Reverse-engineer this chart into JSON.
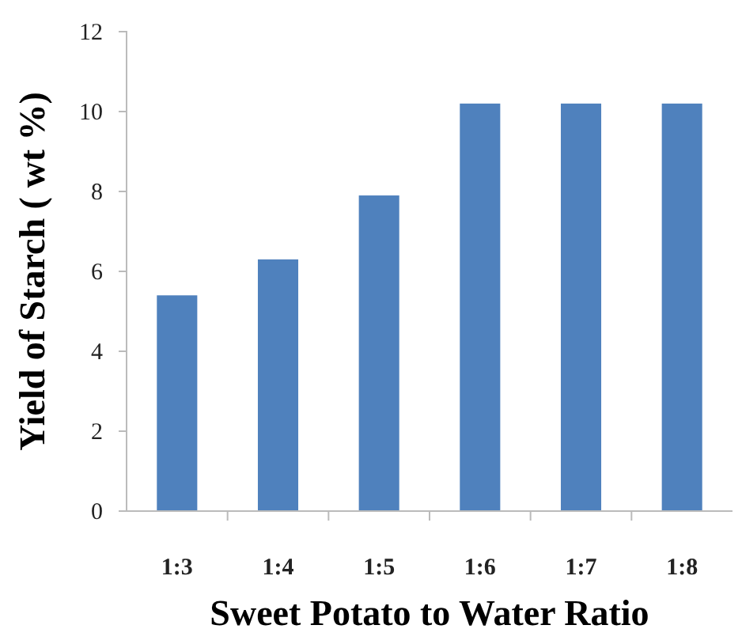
{
  "chart_data": {
    "type": "bar",
    "xlabel": "Sweet Potato to Water Ratio",
    "ylabel": "Yield of Starch ( wt %)",
    "categories": [
      "1:3",
      "1:4",
      "1:5",
      "1:6",
      "1:7",
      "1:8"
    ],
    "values": [
      5.4,
      6.3,
      7.9,
      10.2,
      10.2,
      10.2
    ],
    "color": "#4f81bd",
    "ylim": [
      0,
      12
    ],
    "yticks": [
      0,
      2,
      4,
      6,
      8,
      10,
      12
    ],
    "grid": false
  }
}
